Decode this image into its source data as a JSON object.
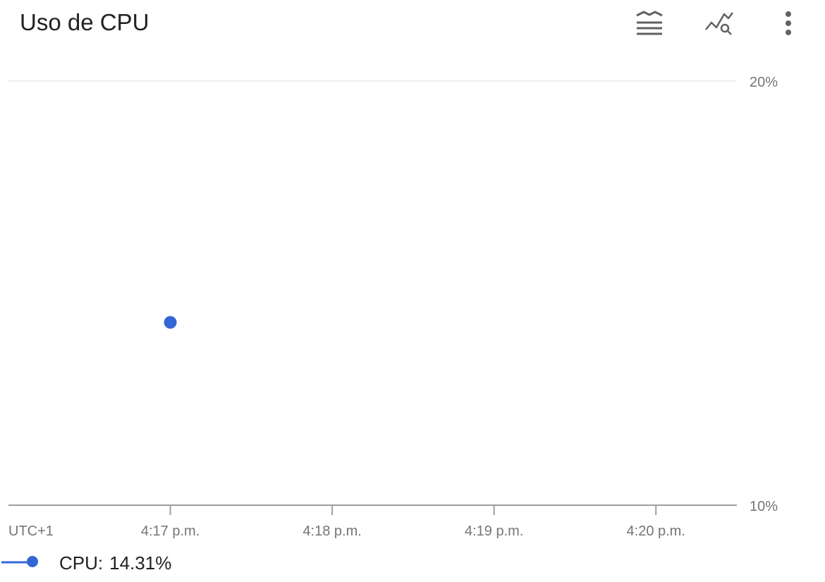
{
  "header": {
    "title": "Uso de CPU",
    "icons": [
      "legend-view-icon",
      "explore-chart-icon",
      "more-vert-icon"
    ]
  },
  "colors": {
    "series": "#3367d6",
    "grid": "#e8e8e8",
    "axis": "#9e9e9e",
    "tick_text": "#757575",
    "icon": "#616161"
  },
  "chart_data": {
    "type": "line",
    "title": "Uso de CPU",
    "xlabel": "",
    "ylabel": "",
    "timezone_label": "UTC+1",
    "x_tick_labels": [
      "4:17 p.m.",
      "4:18 p.m.",
      "4:19 p.m.",
      "4:20 p.m."
    ],
    "x_range_minutes": [
      16.0,
      20.5
    ],
    "ylim": [
      10,
      20
    ],
    "y_tick_labels": [
      "20%",
      "10%"
    ],
    "y_ticks": [
      20,
      10
    ],
    "y_axis_position": "right",
    "grid": true,
    "legend": "bottom-left",
    "series": [
      {
        "name": "CPU",
        "points": [
          {
            "x_label": "4:17 p.m.",
            "x_minute": 17,
            "y": 14.31
          }
        ]
      }
    ]
  },
  "legend": {
    "series_name": "CPU:",
    "value": "14.31%"
  }
}
